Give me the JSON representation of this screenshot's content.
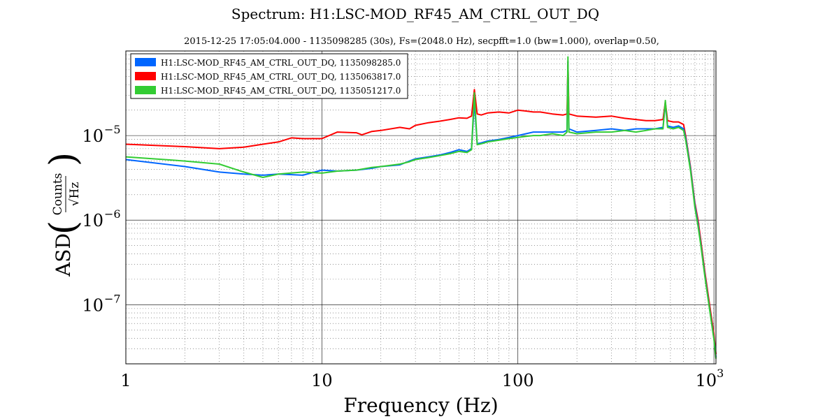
{
  "chart_data": {
    "type": "line",
    "title": "Spectrum: H1:LSC-MOD_RF45_AM_CTRL_OUT_DQ",
    "subtitle": "2015-12-25 17:05:04.000 - 1135098285 (30s), Fs=(2048.0 Hz), secpfft=1.0 (bw=1.000), overlap=0.50,",
    "xlabel": "Frequency (Hz)",
    "ylabel_prefix": "ASD",
    "ylabel_unit_num": "Counts",
    "ylabel_unit_den": "√Hz",
    "xscale": "log",
    "yscale": "log",
    "xlim": [
      1,
      1024
    ],
    "ylim": [
      2e-08,
      0.0001
    ],
    "grid": true,
    "legend_placement": "top-left",
    "x_ticks": [
      {
        "value": 1,
        "label": "1"
      },
      {
        "value": 10,
        "label": "10"
      },
      {
        "value": 100,
        "label": "100"
      },
      {
        "value": 1000,
        "label": "10",
        "sup": "3"
      }
    ],
    "y_ticks": [
      {
        "value": 1e-05,
        "label": "10",
        "sup": "−5"
      },
      {
        "value": 1e-06,
        "label": "10",
        "sup": "−6"
      },
      {
        "value": 1e-07,
        "label": "10",
        "sup": "−7"
      }
    ],
    "series": [
      {
        "name": "H1:LSC-MOD_RF45_AM_CTRL_OUT_DQ, 1135098285.0",
        "color": "#0066ff",
        "points": [
          [
            1,
            5.2e-06
          ],
          [
            2,
            4.3e-06
          ],
          [
            3,
            3.7e-06
          ],
          [
            4,
            3.5e-06
          ],
          [
            5,
            3.4e-06
          ],
          [
            6,
            3.5e-06
          ],
          [
            8,
            3.4e-06
          ],
          [
            10,
            3.9e-06
          ],
          [
            12,
            3.8e-06
          ],
          [
            15,
            3.9e-06
          ],
          [
            18,
            4.1e-06
          ],
          [
            20,
            4.3e-06
          ],
          [
            25,
            4.5e-06
          ],
          [
            28,
            5e-06
          ],
          [
            30,
            5.3e-06
          ],
          [
            35,
            5.6e-06
          ],
          [
            40,
            5.9e-06
          ],
          [
            45,
            6.3e-06
          ],
          [
            50,
            6.8e-06
          ],
          [
            55,
            6.5e-06
          ],
          [
            58,
            7e-06
          ],
          [
            60,
            2.5e-05
          ],
          [
            62,
            8e-06
          ],
          [
            65,
            8.2e-06
          ],
          [
            70,
            8.6e-06
          ],
          [
            80,
            9e-06
          ],
          [
            90,
            9.5e-06
          ],
          [
            100,
            1e-05
          ],
          [
            110,
            1.05e-05
          ],
          [
            120,
            1.1e-05
          ],
          [
            130,
            1.1e-05
          ],
          [
            150,
            1.1e-05
          ],
          [
            170,
            1.1e-05
          ],
          [
            178,
            1.15e-05
          ],
          [
            180,
            7.5e-05
          ],
          [
            182,
            1.2e-05
          ],
          [
            200,
            1.1e-05
          ],
          [
            250,
            1.15e-05
          ],
          [
            300,
            1.2e-05
          ],
          [
            350,
            1.15e-05
          ],
          [
            400,
            1.2e-05
          ],
          [
            450,
            1.2e-05
          ],
          [
            500,
            1.2e-05
          ],
          [
            550,
            1.25e-05
          ],
          [
            565,
            2.4e-05
          ],
          [
            580,
            1.3e-05
          ],
          [
            620,
            1.25e-05
          ],
          [
            660,
            1.3e-05
          ],
          [
            700,
            1.2e-05
          ],
          [
            720,
            9e-06
          ],
          [
            760,
            4e-06
          ],
          [
            800,
            1.5e-06
          ],
          [
            830,
            9e-07
          ],
          [
            860,
            5e-07
          ],
          [
            900,
            2.2e-07
          ],
          [
            950,
            9e-08
          ],
          [
            1000,
            4e-08
          ],
          [
            1024,
            2.4e-08
          ]
        ]
      },
      {
        "name": "H1:LSC-MOD_RF45_AM_CTRL_OUT_DQ, 1135063817.0",
        "color": "#ff0000",
        "points": [
          [
            1,
            7.9e-06
          ],
          [
            2,
            7.4e-06
          ],
          [
            3,
            7e-06
          ],
          [
            4,
            7.3e-06
          ],
          [
            5,
            7.9e-06
          ],
          [
            6,
            8.4e-06
          ],
          [
            7,
            9.4e-06
          ],
          [
            8,
            9.2e-06
          ],
          [
            10,
            9.2e-06
          ],
          [
            12,
            1.1e-05
          ],
          [
            15,
            1.08e-05
          ],
          [
            16,
            1.02e-05
          ],
          [
            18,
            1.12e-05
          ],
          [
            20,
            1.15e-05
          ],
          [
            25,
            1.25e-05
          ],
          [
            28,
            1.2e-05
          ],
          [
            30,
            1.32e-05
          ],
          [
            35,
            1.42e-05
          ],
          [
            40,
            1.48e-05
          ],
          [
            45,
            1.55e-05
          ],
          [
            50,
            1.62e-05
          ],
          [
            55,
            1.6e-05
          ],
          [
            58,
            1.7e-05
          ],
          [
            60,
            3.5e-05
          ],
          [
            62,
            1.8e-05
          ],
          [
            65,
            1.75e-05
          ],
          [
            70,
            1.85e-05
          ],
          [
            80,
            1.9e-05
          ],
          [
            90,
            1.85e-05
          ],
          [
            100,
            2e-05
          ],
          [
            110,
            1.95e-05
          ],
          [
            120,
            1.9e-05
          ],
          [
            130,
            1.9e-05
          ],
          [
            150,
            1.8e-05
          ],
          [
            170,
            1.75e-05
          ],
          [
            178,
            1.8e-05
          ],
          [
            180,
            7.5e-05
          ],
          [
            182,
            1.8e-05
          ],
          [
            200,
            1.7e-05
          ],
          [
            250,
            1.65e-05
          ],
          [
            300,
            1.7e-05
          ],
          [
            350,
            1.6e-05
          ],
          [
            400,
            1.55e-05
          ],
          [
            450,
            1.5e-05
          ],
          [
            500,
            1.5e-05
          ],
          [
            550,
            1.55e-05
          ],
          [
            565,
            2.5e-05
          ],
          [
            580,
            1.5e-05
          ],
          [
            620,
            1.45e-05
          ],
          [
            660,
            1.45e-05
          ],
          [
            700,
            1.35e-05
          ],
          [
            720,
            9.5e-06
          ],
          [
            760,
            4.2e-06
          ],
          [
            800,
            1.6e-06
          ],
          [
            830,
            1e-06
          ],
          [
            860,
            5.5e-07
          ],
          [
            900,
            2.4e-07
          ],
          [
            950,
            1e-07
          ],
          [
            1000,
            4.5e-08
          ],
          [
            1024,
            2.6e-08
          ]
        ]
      },
      {
        "name": "H1:LSC-MOD_RF45_AM_CTRL_OUT_DQ, 1135051217.0",
        "color": "#33cc33",
        "points": [
          [
            1,
            5.6e-06
          ],
          [
            2,
            5e-06
          ],
          [
            3,
            4.6e-06
          ],
          [
            4,
            3.7e-06
          ],
          [
            5,
            3.2e-06
          ],
          [
            6,
            3.5e-06
          ],
          [
            8,
            3.7e-06
          ],
          [
            10,
            3.6e-06
          ],
          [
            12,
            3.8e-06
          ],
          [
            15,
            3.9e-06
          ],
          [
            18,
            4.2e-06
          ],
          [
            20,
            4.3e-06
          ],
          [
            25,
            4.6e-06
          ],
          [
            28,
            4.9e-06
          ],
          [
            30,
            5.2e-06
          ],
          [
            35,
            5.5e-06
          ],
          [
            40,
            5.8e-06
          ],
          [
            45,
            6.1e-06
          ],
          [
            50,
            6.5e-06
          ],
          [
            55,
            6.3e-06
          ],
          [
            58,
            6.8e-06
          ],
          [
            60,
            3.2e-05
          ],
          [
            62,
            7.8e-06
          ],
          [
            65,
            8e-06
          ],
          [
            70,
            8.4e-06
          ],
          [
            80,
            8.8e-06
          ],
          [
            90,
            9.2e-06
          ],
          [
            100,
            9.5e-06
          ],
          [
            110,
            9.8e-06
          ],
          [
            120,
            1e-05
          ],
          [
            130,
            1e-05
          ],
          [
            150,
            1.05e-05
          ],
          [
            170,
            1e-05
          ],
          [
            178,
            1.1e-05
          ],
          [
            180,
            8.5e-05
          ],
          [
            182,
            1.1e-05
          ],
          [
            200,
            1.05e-05
          ],
          [
            250,
            1.1e-05
          ],
          [
            300,
            1.1e-05
          ],
          [
            350,
            1.15e-05
          ],
          [
            400,
            1.1e-05
          ],
          [
            450,
            1.15e-05
          ],
          [
            500,
            1.2e-05
          ],
          [
            550,
            1.2e-05
          ],
          [
            565,
            2.6e-05
          ],
          [
            580,
            1.25e-05
          ],
          [
            620,
            1.2e-05
          ],
          [
            660,
            1.25e-05
          ],
          [
            700,
            1.15e-05
          ],
          [
            720,
            8.5e-06
          ],
          [
            760,
            3.8e-06
          ],
          [
            800,
            1.4e-06
          ],
          [
            830,
            8.5e-07
          ],
          [
            860,
            4.8e-07
          ],
          [
            900,
            2.1e-07
          ],
          [
            950,
            8.8e-08
          ],
          [
            1000,
            3.9e-08
          ],
          [
            1024,
            2.3e-08
          ]
        ]
      }
    ]
  }
}
